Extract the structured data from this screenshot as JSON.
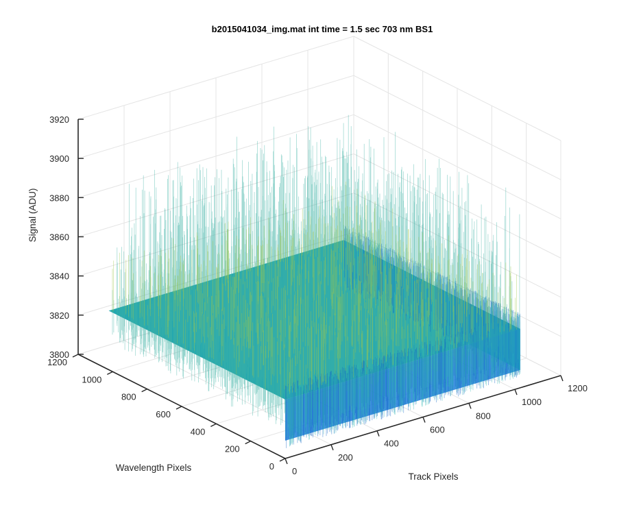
{
  "chart_data": {
    "type": "surface",
    "title": "b2015041034_img.mat int time = 1.5 sec  703 nm BS1",
    "xlabel": "Track Pixels",
    "ylabel": "Wavelength Pixels",
    "zlabel": "Signal (ADU)",
    "xlim": [
      0,
      1200
    ],
    "ylim": [
      0,
      1200
    ],
    "zlim": [
      3800,
      3920
    ],
    "xticks": [
      "0",
      "200",
      "400",
      "600",
      "800",
      "1000",
      "1200"
    ],
    "yticks": [
      "0",
      "200",
      "400",
      "600",
      "800",
      "1000",
      "1200"
    ],
    "zticks": [
      "3800",
      "3820",
      "3840",
      "3860",
      "3880",
      "3900",
      "3920"
    ],
    "data_extent": {
      "x": [
        1,
        1024
      ],
      "y": [
        1,
        1024
      ]
    },
    "signal_mean": 3830,
    "signal_noise_range": [
      3805,
      3900
    ],
    "surface_mean_level": 3830,
    "grid": true,
    "colormap": "parula",
    "colors": {
      "low": "#1f6fd8",
      "mid": "#1aa6b7",
      "high": "#a8c83a",
      "axis": "#262626",
      "grid": "#e4e4e4"
    }
  }
}
